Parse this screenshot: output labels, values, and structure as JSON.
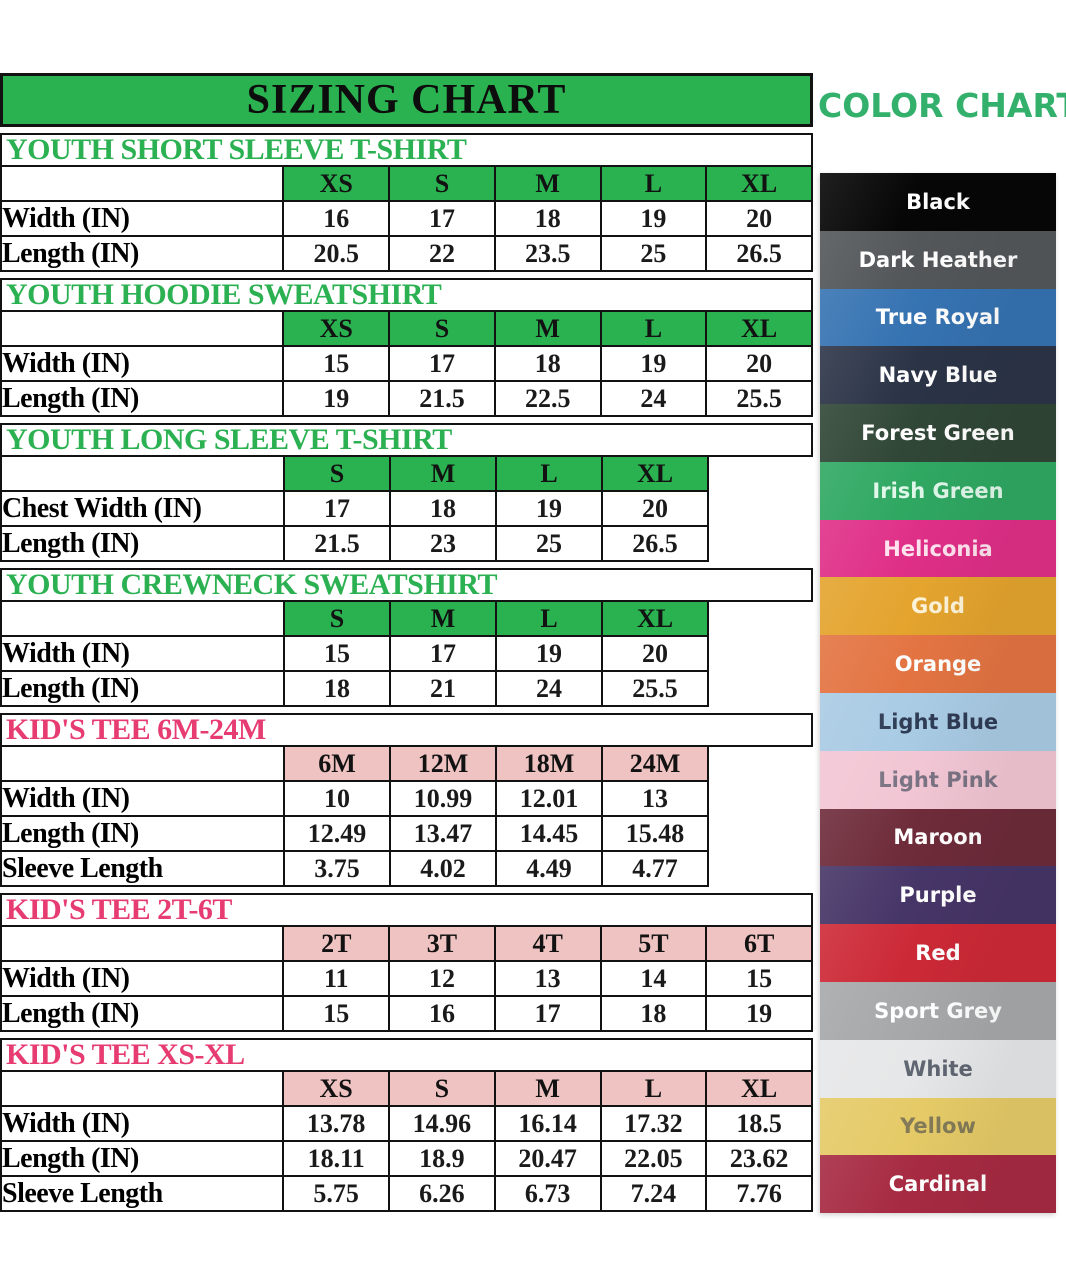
{
  "page": {
    "sizing_chart_title": "SIZING CHART",
    "color_chart_title": "COLOR CHART"
  },
  "theme": {
    "green_accent": "#2ab250",
    "pink_accent": "#eec3c1",
    "green_title_text": "#2bb152",
    "pink_title_text": "#e73c72",
    "color_chart_title_color": "#33b06c",
    "border_color": "#121212"
  },
  "chart_data": {
    "type": "table",
    "tables": [
      {
        "title": "YOUTH SHORT SLEEVE T-SHIRT",
        "accent": "green",
        "sizes": [
          "XS",
          "S",
          "M",
          "L",
          "XL"
        ],
        "rows": [
          {
            "label": "Width (IN)",
            "values": [
              16,
              17,
              18,
              19,
              20
            ]
          },
          {
            "label": "Length (IN)",
            "values": [
              20.5,
              22,
              23.5,
              25,
              26.5
            ]
          }
        ]
      },
      {
        "title": "YOUTH HOODIE SWEATSHIRT",
        "accent": "green",
        "sizes": [
          "XS",
          "S",
          "M",
          "L",
          "XL"
        ],
        "rows": [
          {
            "label": "Width (IN)",
            "values": [
              15,
              17,
              18,
              19,
              20
            ]
          },
          {
            "label": "Length (IN)",
            "values": [
              19,
              21.5,
              22.5,
              24,
              25.5
            ]
          }
        ]
      },
      {
        "title": "YOUTH LONG SLEEVE T-SHIRT",
        "accent": "green",
        "sizes": [
          "S",
          "M",
          "L",
          "XL"
        ],
        "rows": [
          {
            "label": "Chest Width (IN)",
            "values": [
              17,
              18,
              19,
              20
            ]
          },
          {
            "label": "Length (IN)",
            "values": [
              21.5,
              23,
              25,
              26.5
            ]
          }
        ]
      },
      {
        "title": "YOUTH CREWNECK SWEATSHIRT",
        "accent": "green",
        "sizes": [
          "S",
          "M",
          "L",
          "XL"
        ],
        "rows": [
          {
            "label": "Width (IN)",
            "values": [
              15,
              17,
              19,
              20
            ]
          },
          {
            "label": "Length (IN)",
            "values": [
              18,
              21,
              24,
              25.5
            ]
          }
        ]
      },
      {
        "title": "KID'S TEE 6M-24M",
        "accent": "pink",
        "sizes": [
          "6M",
          "12M",
          "18M",
          "24M"
        ],
        "rows": [
          {
            "label": "Width (IN)",
            "values": [
              10,
              10.99,
              12.01,
              13
            ]
          },
          {
            "label": "Length (IN)",
            "values": [
              12.49,
              13.47,
              14.45,
              15.48
            ]
          },
          {
            "label": "Sleeve Length",
            "values": [
              3.75,
              4.02,
              4.49,
              4.77
            ]
          }
        ]
      },
      {
        "title": "KID'S TEE 2T-6T",
        "accent": "pink",
        "sizes": [
          "2T",
          "3T",
          "4T",
          "5T",
          "6T"
        ],
        "rows": [
          {
            "label": "Width (IN)",
            "values": [
              11,
              12,
              13,
              14,
              15
            ]
          },
          {
            "label": "Length (IN)",
            "values": [
              15,
              16,
              17,
              18,
              19
            ]
          }
        ]
      },
      {
        "title": "KID'S TEE XS-XL",
        "accent": "pink",
        "sizes": [
          "XS",
          "S",
          "M",
          "L",
          "XL"
        ],
        "rows": [
          {
            "label": "Width (IN)",
            "values": [
              13.78,
              14.96,
              16.14,
              17.32,
              18.5
            ]
          },
          {
            "label": "Length (IN)",
            "values": [
              18.11,
              18.9,
              20.47,
              22.05,
              23.62
            ]
          },
          {
            "label": "Sleeve Length",
            "values": [
              5.75,
              6.26,
              6.73,
              7.24,
              7.76
            ]
          }
        ]
      }
    ]
  },
  "color_chart": [
    {
      "name": "Black",
      "bg": "#060606",
      "text": "#ffffff"
    },
    {
      "name": "Dark Heather",
      "bg": "#53575a",
      "text": "#ffffff"
    },
    {
      "name": "True Royal",
      "bg": "#3673b2",
      "text": "#ffffff"
    },
    {
      "name": "Navy Blue",
      "bg": "#2b3447",
      "text": "#ffffff"
    },
    {
      "name": "Forest Green",
      "bg": "#304636",
      "text": "#ffffff"
    },
    {
      "name": "Irish Green",
      "bg": "#2fa862",
      "text": "#dff7e9"
    },
    {
      "name": "Heliconia",
      "bg": "#df2f87",
      "text": "#ffe3ef"
    },
    {
      "name": "Gold",
      "bg": "#e4a42e",
      "text": "#fdf3d8"
    },
    {
      "name": "Orange",
      "bg": "#e37442",
      "text": "#ffffff"
    },
    {
      "name": "Light Blue",
      "bg": "#a9cbe4",
      "text": "#2f3c55"
    },
    {
      "name": "Light Pink",
      "bg": "#f2c6d4",
      "text": "#7a7383"
    },
    {
      "name": "Maroon",
      "bg": "#6e2b3a",
      "text": "#ffffff"
    },
    {
      "name": "Purple",
      "bg": "#463567",
      "text": "#ffffff"
    },
    {
      "name": "Red",
      "bg": "#cc2936",
      "text": "#ffffff"
    },
    {
      "name": "Sport Grey",
      "bg": "#a6a8aa",
      "text": "#ffffff"
    },
    {
      "name": "White",
      "bg": "#e6e7e8",
      "text": "#5f6672"
    },
    {
      "name": "Yellow",
      "bg": "#e5ca67",
      "text": "#837a58"
    },
    {
      "name": "Cardinal",
      "bg": "#a62a42",
      "text": "#ffffff"
    }
  ]
}
